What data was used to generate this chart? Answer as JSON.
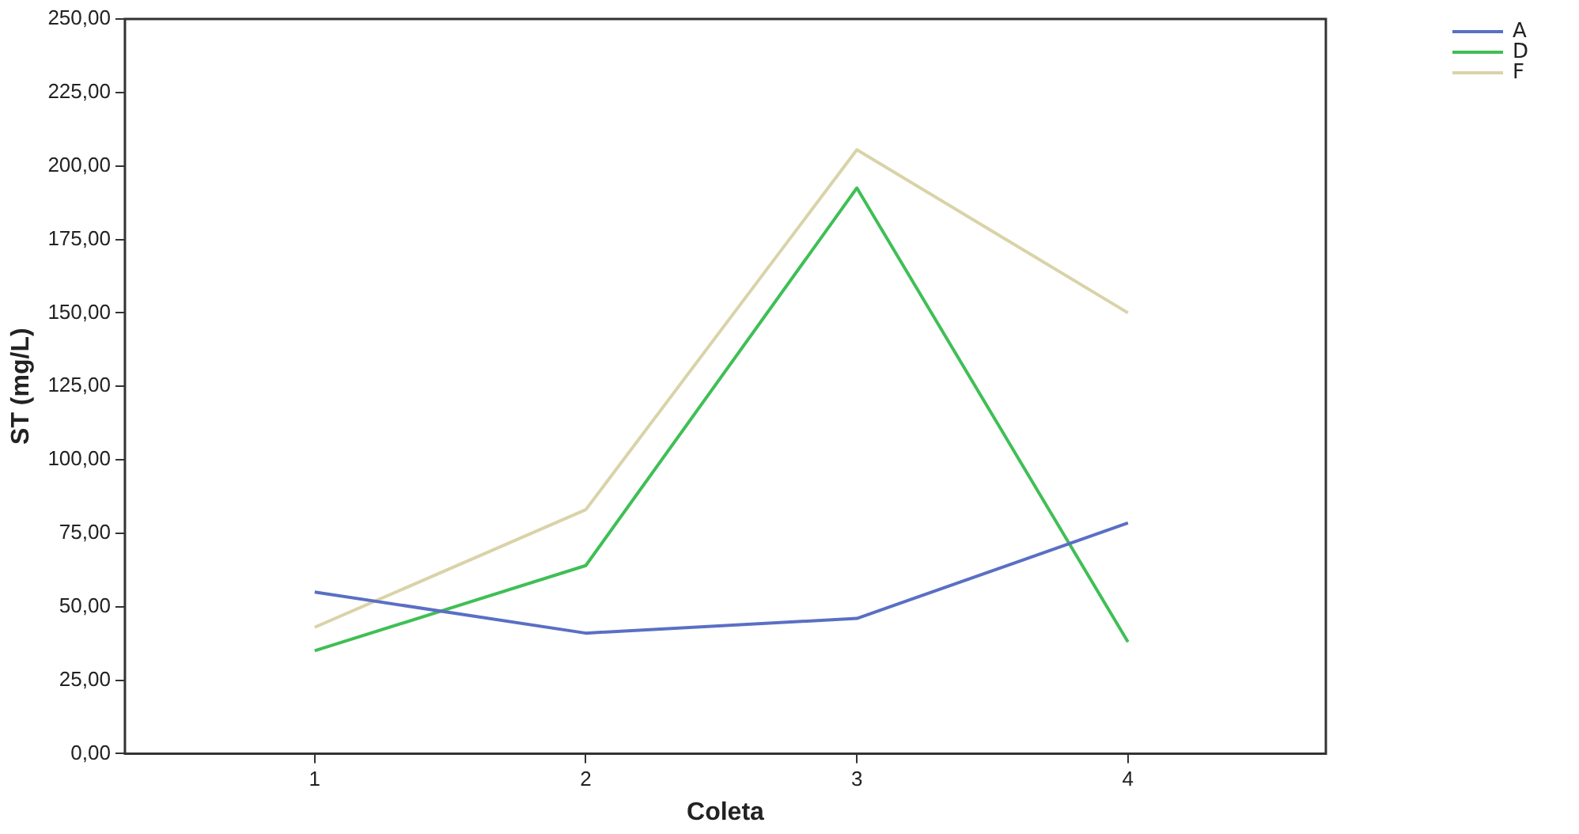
{
  "chart_data": {
    "type": "line",
    "xlabel": "Coleta",
    "ylabel": "ST (mg/L)",
    "categories": [
      "1",
      "2",
      "3",
      "4"
    ],
    "series": [
      {
        "name": "A",
        "color": "#5a6fc4",
        "values": [
          55,
          41,
          46,
          78.5
        ]
      },
      {
        "name": "D",
        "color": "#3fbf55",
        "values": [
          35,
          64,
          192.5,
          38
        ]
      },
      {
        "name": "F",
        "color": "#d9d3a8",
        "values": [
          43,
          83,
          205.5,
          150
        ]
      }
    ],
    "ylim": [
      0,
      250
    ],
    "yticks": [
      {
        "value": 0,
        "label": "0,00"
      },
      {
        "value": 25,
        "label": "25,00"
      },
      {
        "value": 50,
        "label": "50,00"
      },
      {
        "value": 75,
        "label": "75,00"
      },
      {
        "value": 100,
        "label": "100,00"
      },
      {
        "value": 125,
        "label": "125,00"
      },
      {
        "value": 150,
        "label": "150,00"
      },
      {
        "value": 175,
        "label": "175,00"
      },
      {
        "value": 200,
        "label": "200,00"
      },
      {
        "value": 225,
        "label": "225,00"
      },
      {
        "value": 250,
        "label": "250,00"
      }
    ],
    "grid": false,
    "legend": "top right",
    "marker": "none",
    "line_style": "solid"
  }
}
